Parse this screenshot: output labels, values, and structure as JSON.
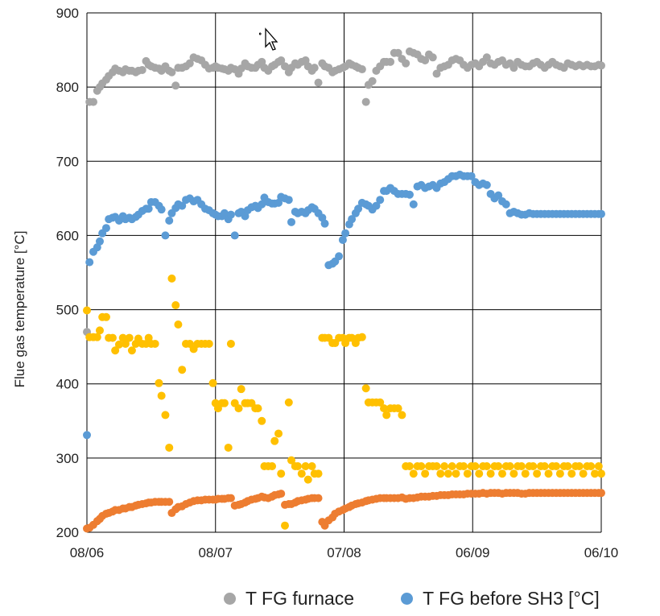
{
  "chart_data": {
    "type": "scatter",
    "title": "",
    "xlabel": "",
    "ylabel": "Flue gas temperature [°C]",
    "ylim": [
      200,
      900
    ],
    "yticks": [
      200,
      300,
      400,
      500,
      600,
      700,
      800,
      900
    ],
    "xlim": [
      0,
      4
    ],
    "xticks": [
      0,
      1,
      2,
      3,
      4
    ],
    "xticklabels": [
      "08/06",
      "08/07",
      "07/08",
      "06/09",
      "06/10"
    ],
    "grid": true,
    "legend_position": "bottom",
    "series": [
      {
        "name": "T FG furnace",
        "color": "#a6a6a6",
        "legend": true,
        "x": [
          0.0,
          0.02,
          0.05,
          0.08,
          0.1,
          0.12,
          0.15,
          0.17,
          0.2,
          0.22,
          0.25,
          0.28,
          0.3,
          0.33,
          0.35,
          0.38,
          0.4,
          0.43,
          0.46,
          0.48,
          0.5,
          0.53,
          0.56,
          0.58,
          0.61,
          0.64,
          0.66,
          0.69,
          0.71,
          0.74,
          0.77,
          0.8,
          0.83,
          0.86,
          0.89,
          0.92,
          0.95,
          0.98,
          1.0,
          1.02,
          1.05,
          1.07,
          1.1,
          1.12,
          1.15,
          1.18,
          1.2,
          1.23,
          1.25,
          1.28,
          1.31,
          1.33,
          1.36,
          1.38,
          1.41,
          1.44,
          1.46,
          1.49,
          1.51,
          1.54,
          1.57,
          1.59,
          1.62,
          1.64,
          1.67,
          1.7,
          1.72,
          1.75,
          1.77,
          1.8,
          1.83,
          1.85,
          1.88,
          1.91,
          1.93,
          1.96,
          1.99,
          2.01,
          2.04,
          2.06,
          2.09,
          2.11,
          2.14,
          2.17,
          2.19,
          2.22,
          2.25,
          2.28,
          2.31,
          2.33,
          2.36,
          2.39,
          2.42,
          2.45,
          2.48,
          2.51,
          2.54,
          2.57,
          2.6,
          2.63,
          2.66,
          2.69,
          2.72,
          2.75,
          2.78,
          2.81,
          2.84,
          2.87,
          2.9,
          2.93,
          2.96,
          2.99,
          3.02,
          3.05,
          3.08,
          3.11,
          3.14,
          3.17,
          3.2,
          3.23,
          3.26,
          3.29,
          3.32,
          3.35,
          3.38,
          3.41,
          3.44,
          3.47,
          3.5,
          3.53,
          3.56,
          3.59,
          3.62,
          3.65,
          3.68,
          3.71,
          3.74,
          3.77,
          3.8,
          3.83,
          3.86,
          3.89,
          3.92,
          3.95,
          3.98,
          4.0
        ],
        "y": [
          470,
          780,
          780,
          795,
          800,
          805,
          810,
          815,
          820,
          825,
          822,
          820,
          824,
          822,
          822,
          820,
          822,
          823,
          835,
          830,
          828,
          826,
          825,
          822,
          828,
          822,
          820,
          802,
          826,
          826,
          828,
          832,
          840,
          838,
          836,
          830,
          825,
          826,
          828,
          826,
          825,
          824,
          822,
          826,
          824,
          818,
          825,
          832,
          828,
          826,
          826,
          830,
          834,
          826,
          822,
          828,
          830,
          834,
          836,
          828,
          820,
          826,
          832,
          830,
          834,
          836,
          828,
          822,
          826,
          806,
          832,
          828,
          826,
          820,
          822,
          824,
          826,
          828,
          832,
          830,
          828,
          826,
          824,
          780,
          803,
          808,
          822,
          828,
          834,
          834,
          834,
          846,
          846,
          838,
          832,
          848,
          846,
          844,
          838,
          836,
          844,
          840,
          818,
          826,
          828,
          830,
          836,
          838,
          836,
          830,
          826,
          830,
          832,
          828,
          834,
          840,
          832,
          830,
          834,
          836,
          830,
          832,
          826,
          834,
          830,
          828,
          828,
          832,
          834,
          830,
          826,
          830,
          834,
          830,
          828,
          826,
          832,
          830,
          828,
          830,
          828,
          830,
          828,
          828,
          830,
          829
        ],
        "notes_ignored": true
      },
      {
        "name": "T FG before SH3 [°C]",
        "color": "#5b9bd5",
        "legend": true,
        "x": [
          0.0,
          0.02,
          0.05,
          0.08,
          0.1,
          0.12,
          0.15,
          0.17,
          0.2,
          0.22,
          0.25,
          0.28,
          0.3,
          0.33,
          0.35,
          0.38,
          0.4,
          0.43,
          0.46,
          0.48,
          0.5,
          0.53,
          0.56,
          0.58,
          0.61,
          0.64,
          0.66,
          0.69,
          0.71,
          0.74,
          0.77,
          0.8,
          0.83,
          0.86,
          0.89,
          0.92,
          0.95,
          0.98,
          1.0,
          1.02,
          1.05,
          1.07,
          1.1,
          1.12,
          1.15,
          1.18,
          1.2,
          1.23,
          1.25,
          1.28,
          1.31,
          1.33,
          1.36,
          1.38,
          1.41,
          1.44,
          1.46,
          1.49,
          1.51,
          1.54,
          1.57,
          1.59,
          1.62,
          1.64,
          1.67,
          1.7,
          1.72,
          1.75,
          1.77,
          1.8,
          1.83,
          1.85,
          1.88,
          1.91,
          1.93,
          1.96,
          1.99,
          2.01,
          2.04,
          2.06,
          2.09,
          2.11,
          2.14,
          2.17,
          2.19,
          2.22,
          2.25,
          2.28,
          2.31,
          2.33,
          2.36,
          2.39,
          2.42,
          2.45,
          2.48,
          2.51,
          2.54,
          2.57,
          2.6,
          2.63,
          2.66,
          2.69,
          2.72,
          2.75,
          2.78,
          2.81,
          2.84,
          2.87,
          2.9,
          2.93,
          2.96,
          2.99,
          3.02,
          3.05,
          3.08,
          3.11,
          3.14,
          3.17,
          3.2,
          3.23,
          3.26,
          3.29,
          3.32,
          3.35,
          3.38,
          3.41,
          3.44,
          3.47,
          3.5,
          3.53,
          3.56,
          3.59,
          3.62,
          3.65,
          3.68,
          3.71,
          3.74,
          3.77,
          3.8,
          3.83,
          3.86,
          3.89,
          3.92,
          3.95,
          3.98,
          4.0
        ],
        "y": [
          331,
          564,
          578,
          584,
          592,
          603,
          610,
          622,
          624,
          625,
          620,
          626,
          622,
          624,
          622,
          625,
          628,
          633,
          636,
          636,
          645,
          645,
          640,
          635,
          600,
          620,
          630,
          637,
          642,
          640,
          648,
          650,
          646,
          648,
          642,
          636,
          634,
          630,
          628,
          626,
          626,
          630,
          622,
          628,
          600,
          630,
          632,
          626,
          634,
          638,
          640,
          637,
          642,
          651,
          645,
          643,
          643,
          644,
          652,
          650,
          648,
          618,
          632,
          630,
          632,
          630,
          634,
          638,
          636,
          630,
          624,
          616,
          560,
          562,
          565,
          572,
          594,
          603,
          615,
          622,
          630,
          636,
          644,
          642,
          640,
          635,
          640,
          648,
          660,
          660,
          664,
          660,
          656,
          656,
          656,
          655,
          642,
          666,
          668,
          664,
          666,
          668,
          664,
          670,
          672,
          676,
          680,
          680,
          682,
          680,
          680,
          680,
          672,
          668,
          670,
          668,
          656,
          650,
          654,
          646,
          642,
          630,
          632,
          630,
          628,
          628,
          630,
          629,
          629,
          629,
          629,
          629,
          629,
          629,
          629,
          629,
          629,
          629,
          629,
          629,
          629,
          629,
          629,
          629,
          629,
          629
        ]
      },
      {
        "name": "",
        "color": "#ffc000",
        "legend": false,
        "x": [
          0.0,
          0.02,
          0.05,
          0.08,
          0.1,
          0.12,
          0.15,
          0.17,
          0.2,
          0.22,
          0.25,
          0.28,
          0.3,
          0.33,
          0.35,
          0.38,
          0.4,
          0.43,
          0.46,
          0.48,
          0.5,
          0.53,
          0.56,
          0.58,
          0.61,
          0.64,
          0.66,
          0.69,
          0.71,
          0.74,
          0.77,
          0.8,
          0.83,
          0.86,
          0.89,
          0.92,
          0.95,
          0.98,
          1.0,
          1.02,
          1.05,
          1.07,
          1.1,
          1.12,
          1.15,
          1.18,
          1.2,
          1.23,
          1.25,
          1.28,
          1.31,
          1.33,
          1.36,
          1.38,
          1.41,
          1.44,
          1.46,
          1.49,
          1.51,
          1.54,
          1.57,
          1.59,
          1.62,
          1.64,
          1.67,
          1.7,
          1.72,
          1.75,
          1.77,
          1.8,
          1.83,
          1.85,
          1.88,
          1.91,
          1.93,
          1.96,
          1.99,
          2.01,
          2.04,
          2.06,
          2.09,
          2.11,
          2.14,
          2.17,
          2.19,
          2.22,
          2.25,
          2.28,
          2.31,
          2.33,
          2.36,
          2.39,
          2.42,
          2.45,
          2.48,
          2.51,
          2.54,
          2.57,
          2.6,
          2.63,
          2.66,
          2.69,
          2.72,
          2.75,
          2.78,
          2.81,
          2.84,
          2.87,
          2.9,
          2.93,
          2.96,
          2.99,
          3.02,
          3.05,
          3.08,
          3.11,
          3.14,
          3.17,
          3.2,
          3.23,
          3.26,
          3.29,
          3.32,
          3.35,
          3.38,
          3.41,
          3.44,
          3.47,
          3.5,
          3.53,
          3.56,
          3.59,
          3.62,
          3.65,
          3.68,
          3.71,
          3.74,
          3.77,
          3.8,
          3.83,
          3.86,
          3.89,
          3.92,
          3.95,
          3.98,
          4.0
        ],
        "y": [
          499,
          463,
          463,
          463,
          472,
          490,
          490,
          462,
          462,
          445,
          453,
          462,
          454,
          462,
          445,
          454,
          461,
          454,
          454,
          462,
          454,
          454,
          401,
          384,
          358,
          314,
          542,
          506,
          480,
          419,
          454,
          454,
          447,
          454,
          454,
          454,
          454,
          401,
          374,
          367,
          374,
          374,
          314,
          454,
          374,
          367,
          393,
          374,
          374,
          374,
          367,
          367,
          350,
          289,
          289,
          289,
          323,
          333,
          279,
          209,
          375,
          297,
          289,
          289,
          279,
          289,
          271,
          289,
          279,
          279,
          462,
          462,
          462,
          455,
          455,
          462,
          462,
          455,
          462,
          462,
          455,
          462,
          463,
          394,
          375,
          375,
          375,
          375,
          367,
          358,
          367,
          367,
          367,
          358,
          289,
          289,
          279,
          289,
          289,
          279,
          289,
          289,
          289,
          279,
          289,
          279,
          289,
          279,
          289,
          289,
          279,
          289,
          289,
          279,
          289,
          289,
          279,
          289,
          289,
          279,
          289,
          289,
          279,
          289,
          289,
          279,
          289,
          289,
          279,
          289,
          289,
          279,
          289,
          289,
          279,
          289,
          289,
          279,
          289,
          289,
          279,
          289,
          289,
          279,
          289,
          279
        ]
      },
      {
        "name": "",
        "color": "#ed7d31",
        "legend": false,
        "x": [
          0.0,
          0.02,
          0.05,
          0.08,
          0.1,
          0.12,
          0.15,
          0.17,
          0.2,
          0.22,
          0.25,
          0.28,
          0.3,
          0.33,
          0.35,
          0.38,
          0.4,
          0.43,
          0.46,
          0.48,
          0.5,
          0.53,
          0.56,
          0.58,
          0.61,
          0.64,
          0.66,
          0.69,
          0.71,
          0.74,
          0.77,
          0.8,
          0.83,
          0.86,
          0.89,
          0.92,
          0.95,
          0.98,
          1.0,
          1.02,
          1.05,
          1.07,
          1.1,
          1.12,
          1.15,
          1.18,
          1.2,
          1.23,
          1.25,
          1.28,
          1.31,
          1.33,
          1.36,
          1.38,
          1.41,
          1.44,
          1.46,
          1.49,
          1.51,
          1.54,
          1.57,
          1.59,
          1.62,
          1.64,
          1.67,
          1.7,
          1.72,
          1.75,
          1.77,
          1.8,
          1.83,
          1.85,
          1.88,
          1.91,
          1.93,
          1.96,
          1.99,
          2.01,
          2.04,
          2.06,
          2.09,
          2.11,
          2.14,
          2.17,
          2.19,
          2.22,
          2.25,
          2.28,
          2.31,
          2.33,
          2.36,
          2.39,
          2.42,
          2.45,
          2.48,
          2.51,
          2.54,
          2.57,
          2.6,
          2.63,
          2.66,
          2.69,
          2.72,
          2.75,
          2.78,
          2.81,
          2.84,
          2.87,
          2.9,
          2.93,
          2.96,
          2.99,
          3.02,
          3.05,
          3.08,
          3.11,
          3.14,
          3.17,
          3.2,
          3.23,
          3.26,
          3.29,
          3.32,
          3.35,
          3.38,
          3.41,
          3.44,
          3.47,
          3.5,
          3.53,
          3.56,
          3.59,
          3.62,
          3.65,
          3.68,
          3.71,
          3.74,
          3.77,
          3.8,
          3.83,
          3.86,
          3.89,
          3.92,
          3.95,
          3.98,
          4.0
        ],
        "y": [
          205,
          206,
          210,
          215,
          218,
          222,
          225,
          226,
          228,
          230,
          230,
          232,
          232,
          234,
          234,
          236,
          237,
          238,
          239,
          240,
          240,
          241,
          241,
          241,
          241,
          241,
          226,
          231,
          234,
          235,
          238,
          240,
          242,
          243,
          243,
          244,
          244,
          244,
          244,
          245,
          245,
          245,
          246,
          246,
          236,
          237,
          238,
          240,
          242,
          244,
          245,
          246,
          248,
          247,
          246,
          248,
          250,
          251,
          252,
          237,
          238,
          238,
          240,
          242,
          243,
          244,
          245,
          246,
          246,
          246,
          214,
          209,
          216,
          220,
          225,
          228,
          230,
          232,
          234,
          236,
          238,
          239,
          240,
          242,
          243,
          244,
          245,
          246,
          246,
          246,
          246,
          246,
          246,
          247,
          245,
          246,
          246,
          247,
          248,
          248,
          248,
          249,
          249,
          250,
          250,
          250,
          251,
          251,
          251,
          251,
          252,
          252,
          252,
          252,
          253,
          252,
          253,
          253,
          253,
          252,
          253,
          253,
          253,
          253,
          252,
          252,
          253,
          253,
          253,
          253,
          253,
          253,
          253,
          253,
          253,
          253,
          253,
          253,
          253,
          253,
          253,
          253,
          253,
          253,
          253,
          253
        ]
      }
    ]
  },
  "legend": [
    {
      "label": "T FG furnace",
      "color": "#a6a6a6"
    },
    {
      "label": "T FG before SH3 [°C]",
      "color": "#5b9bd5"
    }
  ]
}
